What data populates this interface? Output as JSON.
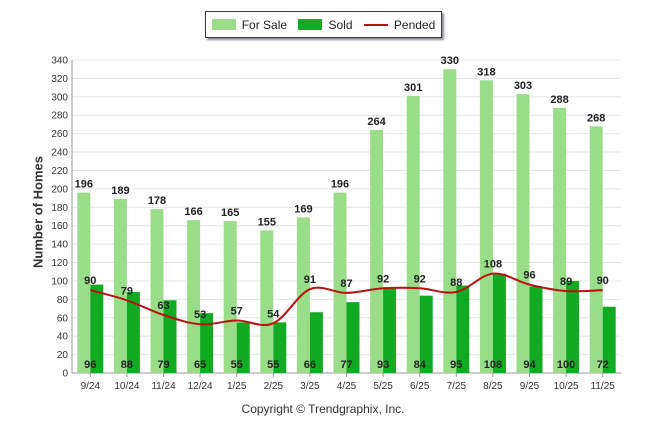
{
  "chart_data": {
    "type": "bar",
    "categories": [
      "9/24",
      "10/24",
      "11/24",
      "12/24",
      "1/25",
      "2/25",
      "3/25",
      "4/25",
      "5/25",
      "6/25",
      "7/25",
      "8/25",
      "9/25",
      "10/25",
      "11/25"
    ],
    "series": [
      {
        "name": "For Sale",
        "type": "bar",
        "color": "#99dd88",
        "values": [
          196,
          189,
          178,
          166,
          165,
          155,
          169,
          196,
          264,
          301,
          330,
          318,
          303,
          288,
          268
        ]
      },
      {
        "name": "Sold",
        "type": "bar",
        "color": "#11aa22",
        "values": [
          96,
          88,
          79,
          65,
          55,
          55,
          66,
          77,
          93,
          84,
          95,
          108,
          94,
          100,
          72
        ]
      },
      {
        "name": "Pended",
        "type": "line",
        "color": "#bb1111",
        "values": [
          90,
          79,
          63,
          53,
          57,
          54,
          91,
          87,
          92,
          92,
          88,
          108,
          96,
          89,
          90
        ]
      }
    ],
    "xlabel": "",
    "ylabel": "Number of Homes",
    "ylim": [
      0,
      340
    ],
    "yticks": [
      0,
      20,
      40,
      60,
      80,
      100,
      120,
      140,
      160,
      180,
      200,
      220,
      240,
      260,
      280,
      300,
      320,
      340
    ],
    "grid": true,
    "legend_position": "top-center",
    "footer": "Copyright © Trendgraphix, Inc."
  }
}
